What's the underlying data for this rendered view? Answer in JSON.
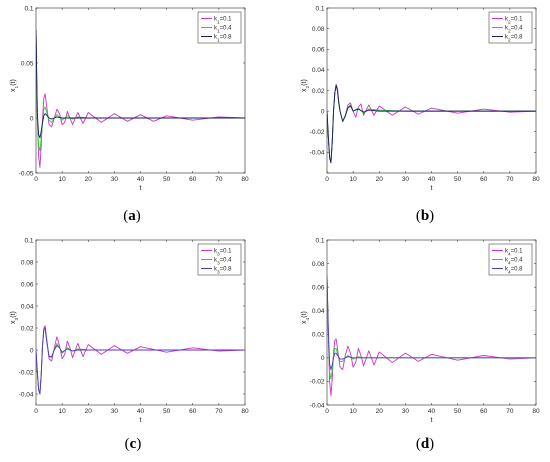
{
  "chart_data": [
    {
      "type": "line",
      "caption": "(a)",
      "xlabel": "t",
      "ylabel": "x₁(t)",
      "xlim": [
        0,
        80
      ],
      "ylim": [
        -0.05,
        0.1
      ],
      "xticks": [
        0,
        10,
        20,
        30,
        40,
        50,
        60,
        70,
        80
      ],
      "yticks": [
        -0.05,
        0,
        0.05,
        0.1
      ],
      "ytick_labels": [
        "-0.05",
        "0",
        "0.05",
        "0.1"
      ],
      "legend_position": "top-right",
      "series": [
        {
          "name": "k₁=0.1",
          "color": "#cc33cc",
          "x": [
            0,
            0.5,
            1,
            1.5,
            2,
            2.5,
            3,
            3.5,
            4,
            5,
            6,
            7,
            8,
            9,
            10,
            11,
            12,
            13,
            14,
            16,
            18,
            20,
            25,
            30,
            35,
            40,
            45,
            50,
            60,
            70,
            80
          ],
          "y": [
            0.08,
            0.0,
            -0.035,
            -0.045,
            -0.025,
            0.0,
            0.018,
            0.022,
            0.012,
            -0.006,
            -0.008,
            0.0,
            0.008,
            0.004,
            -0.006,
            -0.004,
            0.006,
            0.0,
            -0.006,
            0.005,
            -0.005,
            0.005,
            -0.004,
            0.004,
            -0.003,
            0.003,
            -0.003,
            0.002,
            -0.002,
            0.001,
            0.0
          ]
        },
        {
          "name": "k₁=0.4",
          "color": "#33cc33",
          "x": [
            0,
            0.5,
            1,
            1.5,
            2,
            2.5,
            3,
            3.5,
            4,
            5,
            6,
            7,
            8,
            9,
            10,
            12,
            14,
            16,
            20,
            30,
            40,
            60,
            80
          ],
          "y": [
            0.08,
            0.0,
            -0.025,
            -0.03,
            -0.018,
            -0.004,
            0.008,
            0.01,
            0.006,
            -0.002,
            -0.004,
            0.0,
            0.003,
            0.001,
            -0.002,
            0.002,
            -0.001,
            0.001,
            0.0,
            0.0,
            0.0,
            0.0,
            0.0
          ]
        },
        {
          "name": "k₁=0.8",
          "color": "#1a1a66",
          "x": [
            0,
            0.5,
            1,
            1.5,
            2,
            2.5,
            3,
            3.5,
            4,
            5,
            6,
            7,
            8,
            10,
            12,
            15,
            20,
            30,
            40,
            60,
            80
          ],
          "y": [
            0.08,
            0.005,
            -0.015,
            -0.018,
            -0.012,
            -0.004,
            0.002,
            0.004,
            0.003,
            0.0,
            -0.001,
            0.0,
            0.001,
            0.0,
            0.0,
            0.0,
            0.0,
            0.0,
            0.0,
            0.0,
            0.0
          ]
        }
      ]
    },
    {
      "type": "line",
      "caption": "(b)",
      "xlabel": "t",
      "ylabel": "x₂(t)",
      "xlim": [
        0,
        80
      ],
      "ylim": [
        -0.06,
        0.1
      ],
      "xticks": [
        0,
        10,
        20,
        30,
        40,
        50,
        60,
        70,
        80
      ],
      "yticks": [
        -0.06,
        -0.04,
        -0.02,
        0,
        0.02,
        0.04,
        0.06,
        0.08,
        0.1
      ],
      "ytick_labels": [
        "",
        "-0.04",
        "-0.02",
        "0",
        "0.02",
        "0.04",
        "0.06",
        "0.08",
        "0.1"
      ],
      "legend_position": "top-right",
      "series": [
        {
          "name": "k₂=0.1",
          "color": "#cc33cc",
          "x": [
            0,
            0.5,
            1,
            1.5,
            2,
            2.5,
            3,
            3.5,
            4,
            4.5,
            5,
            6,
            7,
            8,
            9,
            10,
            11,
            12,
            13,
            14,
            16,
            18,
            20,
            25,
            30,
            35,
            40,
            50,
            60,
            70,
            80
          ],
          "y": [
            0.0,
            -0.025,
            -0.045,
            -0.05,
            -0.03,
            0.0,
            0.018,
            0.026,
            0.022,
            0.01,
            0.0,
            -0.01,
            -0.004,
            0.006,
            0.008,
            0.0,
            -0.006,
            0.004,
            0.007,
            -0.004,
            0.006,
            -0.004,
            0.005,
            -0.004,
            0.004,
            -0.003,
            0.003,
            -0.002,
            0.002,
            -0.001,
            0.0
          ]
        },
        {
          "name": "k₂=0.4",
          "color": "#33cc33",
          "x": [
            0,
            0.5,
            1,
            1.5,
            2,
            2.5,
            3,
            3.5,
            4,
            4.5,
            5,
            6,
            7,
            8,
            9,
            10,
            12,
            14,
            16,
            20,
            30,
            40,
            60,
            80
          ],
          "y": [
            0.0,
            -0.025,
            -0.045,
            -0.05,
            -0.03,
            0.0,
            0.018,
            0.025,
            0.02,
            0.008,
            0.0,
            -0.01,
            -0.004,
            0.004,
            0.006,
            0.0,
            0.003,
            -0.002,
            0.002,
            0.001,
            0.0,
            0.0,
            0.0,
            0.0
          ]
        },
        {
          "name": "k₂=0.8",
          "color": "#1a1a66",
          "x": [
            0,
            0.5,
            1,
            1.5,
            2,
            2.5,
            3,
            3.5,
            4,
            4.5,
            5,
            6,
            7,
            8,
            9,
            10,
            12,
            14,
            16,
            20,
            30,
            40,
            60,
            80
          ],
          "y": [
            0.0,
            -0.025,
            -0.045,
            -0.05,
            -0.03,
            0.0,
            0.018,
            0.025,
            0.02,
            0.008,
            0.0,
            -0.01,
            -0.005,
            0.003,
            0.005,
            0.0,
            0.002,
            -0.001,
            0.001,
            0.0,
            0.0,
            0.0,
            0.0,
            0.0
          ]
        }
      ]
    },
    {
      "type": "line",
      "caption": "(c)",
      "xlabel": "t",
      "ylabel": "x₃(t)",
      "xlim": [
        0,
        80
      ],
      "ylim": [
        -0.05,
        0.1
      ],
      "xticks": [
        0,
        10,
        20,
        30,
        40,
        50,
        60,
        70,
        80
      ],
      "yticks": [
        -0.04,
        -0.02,
        0,
        0.02,
        0.04,
        0.06,
        0.08,
        0.1
      ],
      "ytick_labels": [
        "-0.04",
        "-0.02",
        "0",
        "0.02",
        "0.04",
        "0.06",
        "0.08",
        "0.1"
      ],
      "legend_position": "top-right",
      "series": [
        {
          "name": "k₃=0.1",
          "color": "#cc33cc",
          "x": [
            0,
            0.5,
            1,
            1.5,
            2,
            2.5,
            3,
            3.5,
            4,
            5,
            6,
            7,
            8,
            9,
            10,
            11,
            12,
            13,
            14,
            16,
            18,
            20,
            25,
            30,
            35,
            40,
            50,
            60,
            70,
            80
          ],
          "y": [
            0.0,
            -0.02,
            -0.036,
            -0.04,
            -0.022,
            0.005,
            0.02,
            0.022,
            0.012,
            -0.008,
            -0.01,
            0.002,
            0.012,
            0.004,
            -0.008,
            -0.004,
            0.008,
            0.002,
            -0.007,
            0.006,
            -0.006,
            0.005,
            -0.004,
            0.004,
            -0.003,
            0.003,
            -0.002,
            0.002,
            -0.001,
            0.0
          ]
        },
        {
          "name": "k₃=0.4",
          "color": "#33cc33",
          "x": [
            0,
            0.5,
            1,
            1.5,
            2,
            2.5,
            3,
            3.5,
            4,
            5,
            6,
            7,
            8,
            9,
            10,
            12,
            14,
            16,
            20,
            30,
            40,
            60,
            80
          ],
          "y": [
            0.0,
            -0.02,
            -0.036,
            -0.04,
            -0.022,
            0.004,
            0.018,
            0.02,
            0.01,
            -0.006,
            -0.007,
            0.001,
            0.006,
            0.002,
            -0.003,
            0.002,
            -0.001,
            0.001,
            0.0,
            0.0,
            0.0,
            0.0,
            0.0
          ]
        },
        {
          "name": "k₃=0.8",
          "color": "#5533cc",
          "x": [
            0,
            0.5,
            1,
            1.5,
            2,
            2.5,
            3,
            3.5,
            4,
            5,
            6,
            7,
            8,
            9,
            10,
            12,
            14,
            16,
            20,
            30,
            40,
            60,
            80
          ],
          "y": [
            0.0,
            -0.02,
            -0.036,
            -0.04,
            -0.022,
            0.004,
            0.018,
            0.02,
            0.01,
            -0.006,
            -0.006,
            0.0,
            0.004,
            0.002,
            -0.002,
            0.001,
            -0.001,
            0.0,
            0.0,
            0.0,
            0.0,
            0.0,
            0.0
          ]
        }
      ]
    },
    {
      "type": "line",
      "caption": "(d)",
      "xlabel": "t",
      "ylabel": "x₄(t)",
      "xlim": [
        0,
        80
      ],
      "ylim": [
        -0.04,
        0.1
      ],
      "xticks": [
        0,
        10,
        20,
        30,
        40,
        50,
        60,
        70,
        80
      ],
      "yticks": [
        -0.04,
        -0.02,
        0,
        0.02,
        0.04,
        0.06,
        0.08,
        0.1
      ],
      "ytick_labels": [
        "-0.04",
        "-0.02",
        "0",
        "0.02",
        "0.04",
        "0.06",
        "0.08",
        "0.1"
      ],
      "legend_position": "top-right",
      "series": [
        {
          "name": "k₄=0.1",
          "color": "#cc33cc",
          "x": [
            0,
            0.5,
            1,
            1.5,
            2,
            2.5,
            3,
            3.5,
            4,
            5,
            6,
            7,
            8,
            9,
            10,
            11,
            12,
            13,
            14,
            16,
            18,
            20,
            25,
            30,
            35,
            40,
            50,
            60,
            70,
            80
          ],
          "y": [
            0.07,
            0.02,
            -0.02,
            -0.032,
            -0.018,
            0.004,
            0.015,
            0.016,
            0.008,
            -0.008,
            -0.01,
            0.002,
            0.01,
            0.004,
            -0.008,
            -0.004,
            0.008,
            0.002,
            -0.007,
            0.006,
            -0.006,
            0.005,
            -0.004,
            0.004,
            -0.003,
            0.003,
            -0.002,
            0.002,
            -0.001,
            0.0
          ]
        },
        {
          "name": "k₄=0.4",
          "color": "#33cc33",
          "x": [
            0,
            0.5,
            1,
            1.5,
            2,
            2.5,
            3,
            3.5,
            4,
            5,
            6,
            7,
            8,
            10,
            12,
            14,
            16,
            20,
            30,
            40,
            60,
            80
          ],
          "y": [
            0.07,
            0.02,
            -0.012,
            -0.018,
            -0.01,
            0.002,
            0.008,
            0.008,
            0.004,
            -0.003,
            -0.003,
            0.0,
            0.002,
            -0.001,
            0.001,
            0.0,
            0.0,
            0.0,
            0.0,
            0.0,
            0.0,
            0.0
          ]
        },
        {
          "name": "k₄=0.8",
          "color": "#5533cc",
          "x": [
            0,
            0.5,
            1,
            1.5,
            2,
            2.5,
            3,
            3.5,
            4,
            5,
            6,
            7,
            8,
            10,
            12,
            14,
            16,
            20,
            30,
            40,
            60,
            80
          ],
          "y": [
            0.07,
            0.025,
            -0.005,
            -0.01,
            -0.006,
            0.0,
            0.004,
            0.004,
            0.002,
            -0.001,
            -0.001,
            0.0,
            0.001,
            0.0,
            0.0,
            0.0,
            0.0,
            0.0,
            0.0,
            0.0,
            0.0,
            0.0
          ]
        }
      ]
    }
  ]
}
